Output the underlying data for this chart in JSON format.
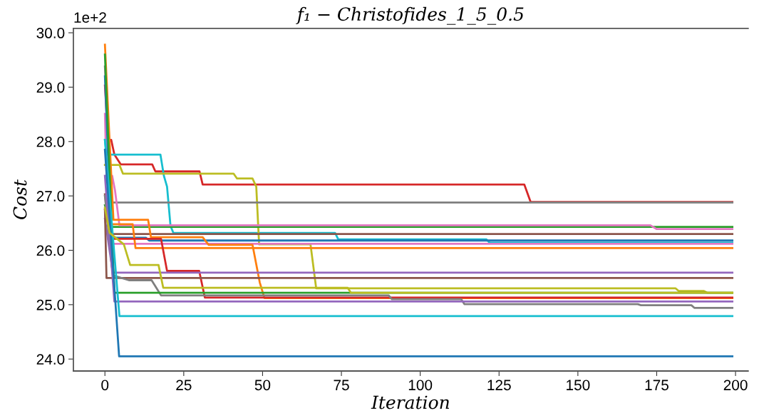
{
  "chart_data": {
    "type": "line",
    "title": "f₁ − Christofides_1_5_0.5",
    "xlabel": "Iteration",
    "ylabel": "Cost",
    "annotations": [
      "1e+2"
    ],
    "xlim": [
      -10,
      204
    ],
    "xticks": [
      0,
      25,
      50,
      75,
      100,
      125,
      150,
      175,
      200
    ],
    "ylim": [
      23.78,
      30.08
    ],
    "yticks": [
      {
        "value": 24,
        "label": "24.0"
      },
      {
        "value": 25,
        "label": "25.0"
      },
      {
        "value": 26,
        "label": "26.0"
      },
      {
        "value": 27,
        "label": "27.0"
      },
      {
        "value": 28,
        "label": "28.0"
      },
      {
        "value": 29,
        "label": "29.0"
      },
      {
        "value": 30,
        "label": "30.0"
      }
    ],
    "grid": false,
    "legend": false,
    "line_style": "solid",
    "marker": "none",
    "series": [
      {
        "color": "#d62728",
        "x": [
          0,
          1,
          2,
          3,
          5,
          15,
          16,
          30,
          31,
          133,
          135,
          199
        ],
        "values": [
          29.03,
          28.03,
          28.03,
          27.76,
          27.58,
          27.58,
          27.45,
          27.45,
          27.21,
          27.21,
          26.89,
          26.89
        ]
      },
      {
        "color": "#17becf",
        "x": [
          0,
          0.5,
          17.6,
          18.7,
          19.7,
          20.8,
          21.7,
          73,
          74,
          121,
          122,
          199
        ],
        "values": [
          28.03,
          27.76,
          27.76,
          27.37,
          27.17,
          26.45,
          26.32,
          26.32,
          26.2,
          26.2,
          26.14,
          26.14
        ]
      },
      {
        "color": "#bcbd22",
        "x": [
          0,
          4.6,
          5.7,
          40.8,
          41.9,
          46.8,
          48,
          48.9,
          65.2,
          67,
          181,
          182,
          190,
          191,
          199
        ],
        "values": [
          27.57,
          27.57,
          27.41,
          27.41,
          27.32,
          27.32,
          27.17,
          26.11,
          26.11,
          25.3,
          25.3,
          25.25,
          25.25,
          25.22,
          25.22
        ]
      },
      {
        "color": "#7f7f7f",
        "x": [
          0,
          2,
          199
        ],
        "values": [
          29.38,
          26.88,
          26.88
        ]
      },
      {
        "color": "#2ca02c",
        "x": [
          0,
          2,
          199
        ],
        "values": [
          26.83,
          26.43,
          26.43
        ]
      },
      {
        "color": "#e377c2",
        "x": [
          0,
          0.5,
          2.3,
          3.2,
          4.6,
          173,
          175,
          199
        ],
        "values": [
          28.51,
          27.37,
          27.37,
          27.1,
          26.46,
          26.46,
          26.39,
          26.39
        ]
      },
      {
        "color": "#8c564b",
        "x": [
          0,
          2,
          199
        ],
        "values": [
          27.03,
          26.3,
          26.3
        ]
      },
      {
        "color": "#1f77b4",
        "x": [
          0,
          2,
          13,
          14,
          199
        ],
        "values": [
          29.2,
          26.23,
          26.23,
          26.18,
          26.18
        ]
      },
      {
        "color": "#e377c2",
        "x": [
          0,
          2,
          199
        ],
        "values": [
          27.0,
          26.12,
          26.12
        ]
      },
      {
        "color": "#ff7f0e",
        "x": [
          1.9,
          8.8,
          9.7,
          199
        ],
        "values": [
          26.48,
          26.48,
          26.04,
          26.04
        ]
      },
      {
        "color": "#ff7f0e",
        "x": [
          0,
          2.7,
          13.7,
          14.6,
          31,
          32.9,
          46.8,
          49.1,
          50.6,
          199
        ],
        "values": [
          29.78,
          26.56,
          26.56,
          26.24,
          26.24,
          26.1,
          26.1,
          25.41,
          25.12,
          25.12
        ]
      },
      {
        "color": "#d62728",
        "x": [
          0,
          2,
          17.8,
          19.7,
          29.9,
          31.7,
          199
        ],
        "values": [
          26.75,
          26.21,
          26.21,
          25.62,
          25.62,
          25.13,
          25.13
        ]
      },
      {
        "color": "#9467bd",
        "x": [
          0,
          2.5,
          199
        ],
        "values": [
          26.58,
          25.59,
          25.59
        ]
      },
      {
        "color": "#8c564b",
        "x": [
          0,
          0.5,
          199
        ],
        "values": [
          26.75,
          25.49,
          25.49
        ]
      },
      {
        "color": "#7f7f7f",
        "x": [
          0,
          2.5,
          7.6,
          14.8,
          16,
          17.8,
          90,
          91,
          113,
          114,
          169,
          170,
          186,
          187,
          199
        ],
        "values": [
          27.0,
          25.54,
          25.45,
          25.45,
          25.34,
          25.17,
          25.17,
          25.1,
          25.1,
          25.01,
          25.01,
          24.99,
          24.99,
          24.94,
          24.94
        ]
      },
      {
        "color": "#2ca02c",
        "x": [
          0,
          3,
          199
        ],
        "values": [
          29.6,
          25.22,
          25.22
        ]
      },
      {
        "color": "#9467bd",
        "x": [
          0,
          3,
          199
        ],
        "values": [
          27.37,
          25.06,
          25.06
        ]
      },
      {
        "color": "#17becf",
        "x": [
          0,
          4.6,
          199
        ],
        "values": [
          28.03,
          24.79,
          24.79
        ]
      },
      {
        "color": "#1f77b4",
        "x": [
          0,
          4.5,
          199
        ],
        "values": [
          27.85,
          24.05,
          24.05
        ]
      },
      {
        "color": "#bcbd22",
        "x": [
          0,
          1.5,
          6,
          8,
          17,
          18.5,
          77,
          78,
          199
        ],
        "values": [
          26.78,
          26.32,
          26.11,
          25.73,
          25.73,
          25.31,
          25.31,
          25.22,
          25.22
        ]
      }
    ]
  }
}
